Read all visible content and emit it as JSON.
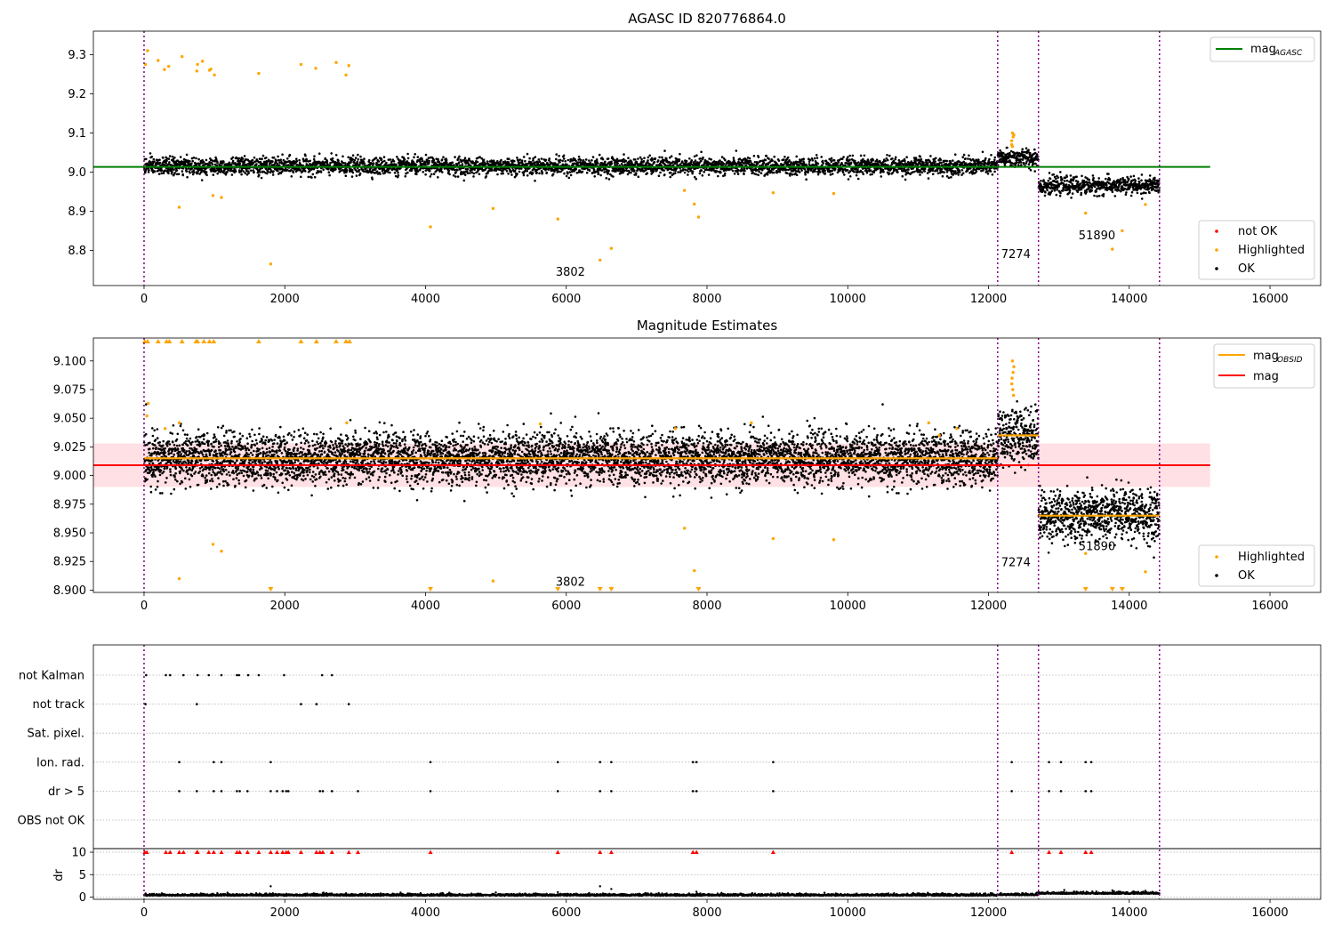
{
  "chart_data": [
    {
      "type": "scatter",
      "title": "AGASC ID 820776864.0",
      "xlabel": "",
      "ylabel": "",
      "xlim": [
        -720,
        16720
      ],
      "ylim": [
        8.71,
        9.36
      ],
      "xticks": [
        "0",
        "2000",
        "4000",
        "6000",
        "8000",
        "10000",
        "12000",
        "14000",
        "16000"
      ],
      "yticks": [
        "8.8",
        "8.9",
        "9.0",
        "9.1",
        "9.2",
        "9.3"
      ],
      "vlines": [
        0,
        12130,
        12710,
        14430
      ],
      "hlines": [
        {
          "name": "magAGASC",
          "y": 9.013,
          "x_end": 15150,
          "color": "#008000"
        }
      ],
      "segments": [
        {
          "x0": 0,
          "x1": 12130,
          "mean": 9.015,
          "spread": 0.011
        },
        {
          "x0": 12130,
          "x1": 12710,
          "mean": 9.035,
          "spread": 0.012
        },
        {
          "x0": 12710,
          "x1": 14430,
          "mean": 8.965,
          "spread": 0.011
        }
      ],
      "highlighted_points": [
        [
          20,
          9.275
        ],
        [
          50,
          9.31
        ],
        [
          200,
          9.285
        ],
        [
          290,
          9.262
        ],
        [
          350,
          9.27
        ],
        [
          540,
          9.295
        ],
        [
          750,
          9.258
        ],
        [
          760,
          9.275
        ],
        [
          830,
          9.283
        ],
        [
          930,
          9.26
        ],
        [
          950,
          9.263
        ],
        [
          1000,
          9.248
        ],
        [
          1630,
          9.252
        ],
        [
          2230,
          9.275
        ],
        [
          2440,
          9.265
        ],
        [
          2730,
          9.28
        ],
        [
          2870,
          9.248
        ],
        [
          2910,
          9.272
        ],
        [
          500,
          8.91
        ],
        [
          980,
          8.94
        ],
        [
          1100,
          8.935
        ],
        [
          1800,
          8.765
        ],
        [
          4070,
          8.86
        ],
        [
          4960,
          8.907
        ],
        [
          5880,
          8.88
        ],
        [
          6480,
          8.775
        ],
        [
          6640,
          8.805
        ],
        [
          7680,
          8.953
        ],
        [
          7820,
          8.918
        ],
        [
          7880,
          8.885
        ],
        [
          8940,
          8.947
        ],
        [
          9800,
          8.945
        ],
        [
          13380,
          8.895
        ],
        [
          13760,
          8.803
        ],
        [
          13900,
          8.85
        ],
        [
          14230,
          8.917
        ],
        [
          12330,
          9.08
        ],
        [
          12340,
          9.1
        ],
        [
          12350,
          9.09
        ],
        [
          12360,
          9.095
        ],
        [
          12330,
          9.07
        ],
        [
          12340,
          9.065
        ]
      ],
      "obsid_labels": [
        {
          "text": "3802",
          "x": 5850,
          "y": 8.735
        },
        {
          "text": "7274",
          "x": 12180,
          "y": 8.78
        },
        {
          "text": "51890",
          "x": 13280,
          "y": 8.828
        }
      ],
      "legend_top": [
        {
          "name": "mag",
          "subscript": "AGASC",
          "color": "#008000"
        }
      ],
      "legend_bottom": [
        {
          "name": "not OK",
          "color": "#ff0000"
        },
        {
          "name": "Highlighted",
          "color": "#ffa500"
        },
        {
          "name": "OK",
          "color": "#000000"
        }
      ],
      "legend_placement": [
        "top-right",
        "bottom-right"
      ]
    },
    {
      "type": "scatter",
      "title": "Magnitude Estimates",
      "xlabel": "",
      "ylabel": "",
      "xlim": [
        -720,
        16720
      ],
      "ylim": [
        8.898,
        9.12
      ],
      "xticks": [
        "0",
        "2000",
        "4000",
        "6000",
        "8000",
        "10000",
        "12000",
        "14000",
        "16000"
      ],
      "yticks": [
        "8.900",
        "8.925",
        "8.950",
        "8.975",
        "9.000",
        "9.025",
        "9.050",
        "9.075",
        "9.100"
      ],
      "vlines": [
        0,
        12130,
        12710,
        14430
      ],
      "mag_line": {
        "y": 9.009,
        "band": [
          8.99,
          9.028
        ],
        "x_end": 15150,
        "color": "#ff0000",
        "band_color": "#ffe0e4"
      },
      "mag_obsid_segments": [
        {
          "x0": 0,
          "x1": 12130,
          "y": 9.015
        },
        {
          "x0": 12130,
          "x1": 12710,
          "y": 9.035
        },
        {
          "x0": 12710,
          "x1": 14430,
          "y": 8.965
        }
      ],
      "segments": [
        {
          "x0": 0,
          "x1": 12130,
          "mean": 9.015,
          "spread": 0.011
        },
        {
          "x0": 12130,
          "x1": 12710,
          "mean": 9.035,
          "spread": 0.012
        },
        {
          "x0": 12710,
          "x1": 14430,
          "mean": 8.965,
          "spread": 0.011
        }
      ],
      "highlighted_points": [
        [
          500,
          8.91
        ],
        [
          980,
          8.94
        ],
        [
          1100,
          8.934
        ],
        [
          4960,
          8.908
        ],
        [
          7680,
          8.954
        ],
        [
          7820,
          8.917
        ],
        [
          8940,
          8.945
        ],
        [
          9800,
          8.944
        ],
        [
          13380,
          8.932
        ],
        [
          14230,
          8.916
        ],
        [
          12330,
          9.08
        ],
        [
          12340,
          9.1
        ],
        [
          12350,
          9.09
        ],
        [
          12360,
          9.095
        ],
        [
          12335,
          9.085
        ],
        [
          12345,
          9.075
        ],
        [
          12355,
          9.07
        ],
        [
          60,
          9.063
        ],
        [
          40,
          9.052
        ],
        [
          500,
          9.046
        ],
        [
          300,
          9.041
        ],
        [
          2880,
          9.046
        ],
        [
          5630,
          9.045
        ],
        [
          7550,
          9.041
        ],
        [
          8630,
          9.046
        ],
        [
          11150,
          9.046
        ],
        [
          11550,
          9.041
        ],
        [
          11300,
          9.035
        ]
      ],
      "clipped_top_x": [
        10,
        50,
        200,
        320,
        360,
        540,
        740,
        760,
        850,
        930,
        990,
        1630,
        2230,
        2450,
        2730,
        2870,
        2920
      ],
      "clipped_bottom_x": [
        1800,
        4070,
        5880,
        6480,
        6640,
        7880,
        13380,
        13760,
        13900
      ],
      "obsid_labels": [
        {
          "text": "3802",
          "x": 5850,
          "y": 8.904
        },
        {
          "text": "7274",
          "x": 12180,
          "y": 8.921
        },
        {
          "text": "51890",
          "x": 13280,
          "y": 8.935
        }
      ],
      "legend_top": [
        {
          "name": "mag",
          "subscript": "OBSID",
          "color": "#ffa500"
        },
        {
          "name": "mag",
          "subscript": "",
          "color": "#ff0000"
        }
      ],
      "legend_bottom": [
        {
          "name": "Highlighted",
          "color": "#ffa500"
        },
        {
          "name": "OK",
          "color": "#000000"
        }
      ],
      "legend_placement": [
        "top-right",
        "bottom-right"
      ]
    },
    {
      "type": "scatter",
      "title": "",
      "xlabel": "",
      "ylabel": "",
      "xlim": [
        -720,
        16720
      ],
      "xticks": [
        "0",
        "2000",
        "4000",
        "6000",
        "8000",
        "10000",
        "12000",
        "14000",
        "16000"
      ],
      "vlines": [
        0,
        12130,
        12710,
        14430
      ],
      "flag_categories": [
        "not Kalman",
        "not track",
        "Sat. pixel.",
        "Ion. rad.",
        "dr > 5",
        "OBS not OK"
      ],
      "flag_points": {
        "not Kalman": [
          30,
          310,
          370,
          560,
          760,
          920,
          1100,
          1320,
          1350,
          1480,
          1630,
          1990,
          2530,
          2670
        ],
        "not track": [
          20,
          750,
          2230,
          2450,
          2910
        ],
        "Sat. pixel.": [],
        "Ion. rad.": [
          500,
          990,
          1100,
          1800,
          4070,
          5880,
          6480,
          6640,
          7800,
          7850,
          8940,
          12330,
          12860,
          13030,
          13380,
          13460
        ],
        "dr > 5": [
          500,
          750,
          990,
          1100,
          1320,
          1360,
          1470,
          1800,
          1890,
          1970,
          2020,
          2050,
          2500,
          2540,
          2670,
          3040,
          4070,
          5880,
          6480,
          6640,
          7800,
          7850,
          8940,
          12330,
          12860,
          13030,
          13380,
          13460
        ],
        "OBS not OK": []
      },
      "dr_axis": {
        "ylabel": "dr",
        "ylim": [
          -0.5,
          10.8
        ],
        "yticks": [
          "0",
          "5",
          "10"
        ],
        "clipped_top_x": [
          10,
          40,
          310,
          370,
          500,
          560,
          750,
          760,
          920,
          990,
          1100,
          1320,
          1360,
          1470,
          1630,
          1800,
          1890,
          1970,
          2020,
          2050,
          2230,
          2450,
          2500,
          2540,
          2670,
          2910,
          3040,
          4070,
          5880,
          6480,
          6640,
          7800,
          7850,
          8940,
          12330,
          12860,
          13030,
          13380,
          13460
        ],
        "extra_points": [
          [
            1800,
            2.4
          ],
          [
            6480,
            2.4
          ],
          [
            6640,
            1.8
          ],
          [
            7850,
            1.2
          ],
          [
            13760,
            1.5
          ],
          [
            14230,
            1.4
          ],
          [
            2550,
            1.0
          ],
          [
            5880,
            1.1
          ]
        ],
        "baseline": 0.3
      }
    }
  ]
}
